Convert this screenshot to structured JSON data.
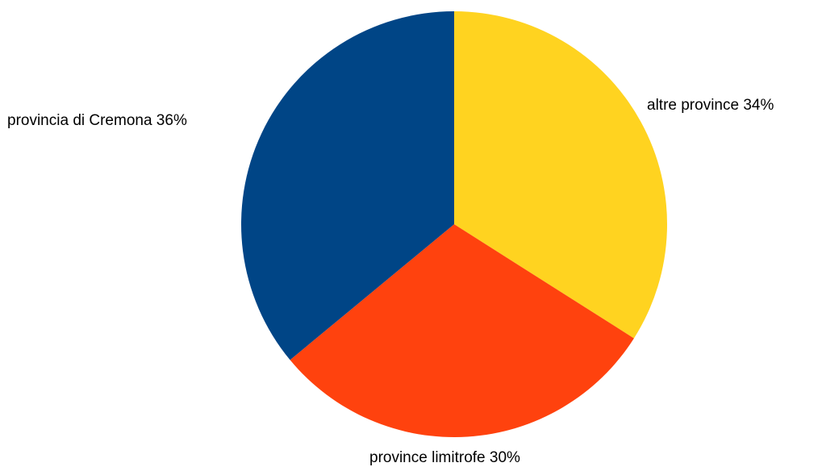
{
  "chart_data": {
    "type": "pie",
    "start": "top",
    "direction": "clockwise",
    "slices": [
      {
        "label": "altre province 34%",
        "value": 34,
        "color": "#ffd320"
      },
      {
        "label": "province limitrofe 30%",
        "value": 30,
        "color": "#ff420e"
      },
      {
        "label": "provincia di Cremona 36%",
        "value": 36,
        "color": "#004586"
      }
    ]
  }
}
